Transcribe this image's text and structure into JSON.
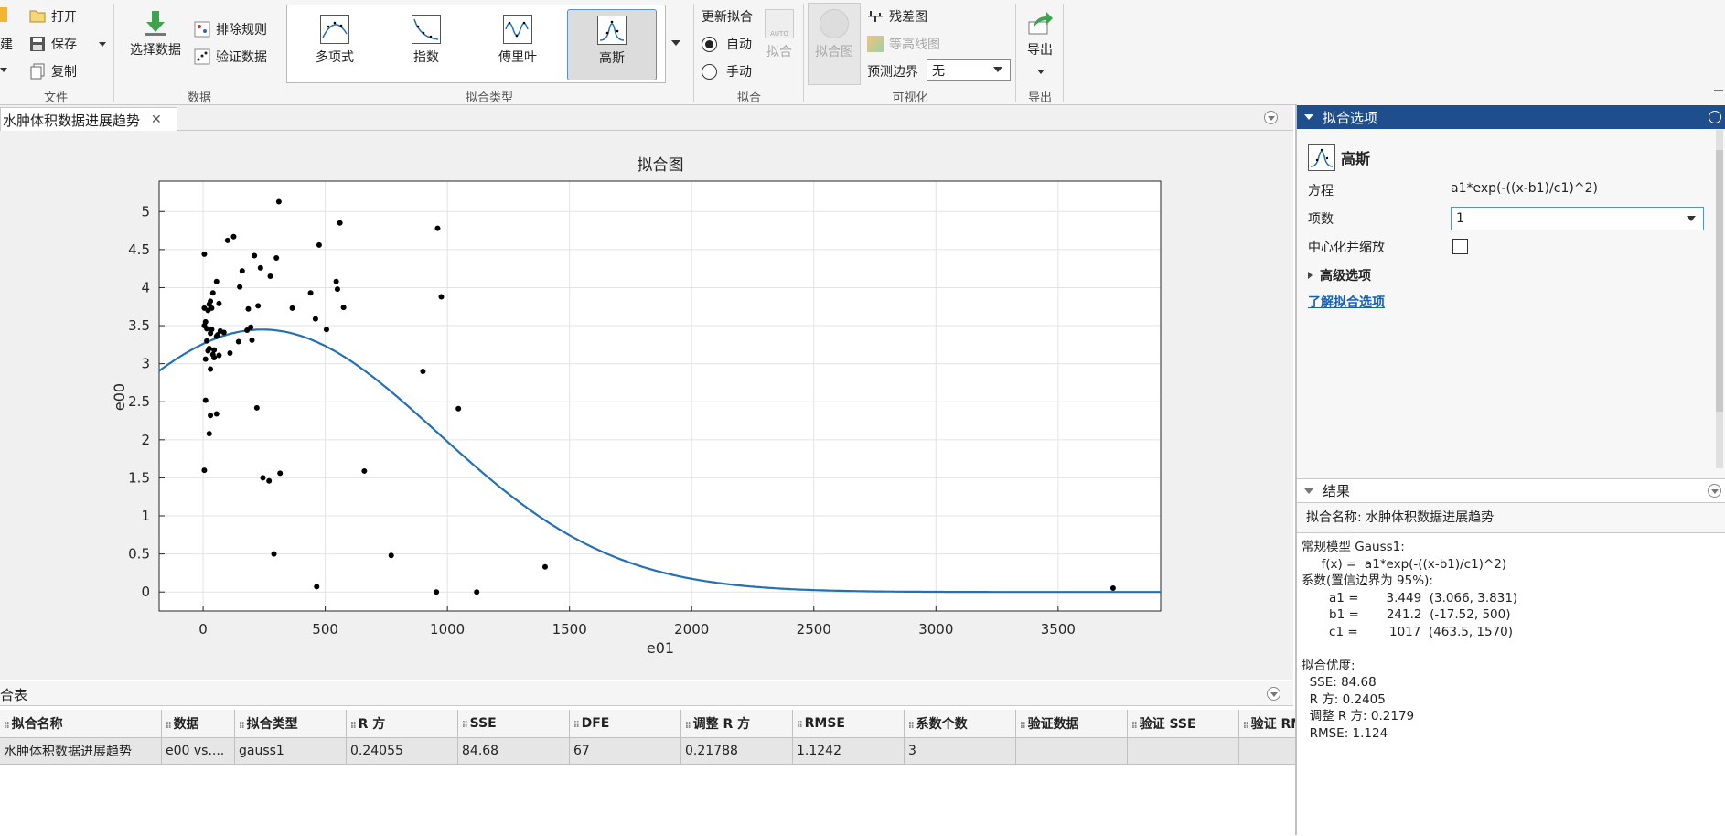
{
  "ribbon": {
    "file": {
      "new_label": "建",
      "open_label": "打开",
      "save_label": "保存",
      "copy_label": "复制",
      "group_label": "文件"
    },
    "data": {
      "select_data_label": "选择数据",
      "exclude_rules_label": "排除规则",
      "validation_data_label": "验证数据",
      "group_label": "数据"
    },
    "fit_type": {
      "items": [
        "多项式",
        "指数",
        "傅里叶",
        "高斯"
      ],
      "selected": "高斯",
      "group_label": "拟合类型"
    },
    "fit": {
      "update_label": "更新拟合",
      "auto_label": "自动",
      "manual_label": "手动",
      "fit_button_label": "拟合",
      "auto_icon_text": "AUTO",
      "group_label": "拟合"
    },
    "visualize": {
      "fit_plot_label": "拟合图",
      "residual_label": "残差图",
      "contour_label": "等高线图",
      "pred_bounds_label": "预测边界",
      "pred_bounds_value": "无",
      "group_label": "可视化"
    },
    "export": {
      "export_label": "导出",
      "group_label": "导出"
    }
  },
  "doc_tab": {
    "title": "水肿体积数据进展趋势"
  },
  "chart_data": {
    "type": "scatter",
    "title": "拟合图",
    "xlabel": "e01",
    "ylabel": "e00",
    "xlim": [
      -180,
      3920
    ],
    "ylim": [
      -0.25,
      5.4
    ],
    "xticks": [
      "0",
      "500",
      "1000",
      "1500",
      "2000",
      "2500",
      "3000",
      "3500"
    ],
    "xtick_values": [
      0,
      500,
      1000,
      1500,
      2000,
      2500,
      3000,
      3500
    ],
    "yticks": [
      "0",
      "0.5",
      "1",
      "1.5",
      "2",
      "2.5",
      "3",
      "3.5",
      "4",
      "4.5",
      "5"
    ],
    "ytick_values": [
      0,
      0.5,
      1,
      1.5,
      2,
      2.5,
      3,
      3.5,
      4,
      4.5,
      5
    ],
    "grid": true,
    "points": [
      [
        5,
        4.44
      ],
      [
        5,
        3.73
      ],
      [
        5,
        3.5
      ],
      [
        10,
        3.55
      ],
      [
        15,
        3.46
      ],
      [
        20,
        3.7
      ],
      [
        25,
        3.78
      ],
      [
        30,
        3.82
      ],
      [
        35,
        3.73
      ],
      [
        40,
        3.93
      ],
      [
        15,
        3.3
      ],
      [
        20,
        3.17
      ],
      [
        25,
        3.2
      ],
      [
        30,
        3.4
      ],
      [
        35,
        3.45
      ],
      [
        40,
        3.12
      ],
      [
        45,
        3.08
      ],
      [
        10,
        3.06
      ],
      [
        30,
        2.93
      ],
      [
        55,
        3.36
      ],
      [
        60,
        3.38
      ],
      [
        65,
        3.79
      ],
      [
        70,
        3.43
      ],
      [
        85,
        3.41
      ],
      [
        55,
        4.08
      ],
      [
        100,
        4.62
      ],
      [
        125,
        4.67
      ],
      [
        150,
        4.01
      ],
      [
        160,
        4.22
      ],
      [
        185,
        3.72
      ],
      [
        195,
        3.48
      ],
      [
        200,
        3.31
      ],
      [
        210,
        4.42
      ],
      [
        235,
        4.26
      ],
      [
        275,
        4.15
      ],
      [
        300,
        4.39
      ],
      [
        310,
        5.13
      ],
      [
        225,
        3.76
      ],
      [
        180,
        3.44
      ],
      [
        145,
        3.29
      ],
      [
        110,
        3.14
      ],
      [
        65,
        3.11
      ],
      [
        45,
        3.18
      ],
      [
        365,
        3.73
      ],
      [
        440,
        3.93
      ],
      [
        460,
        3.59
      ],
      [
        475,
        4.56
      ],
      [
        505,
        3.45
      ],
      [
        545,
        4.08
      ],
      [
        550,
        3.98
      ],
      [
        560,
        4.85
      ],
      [
        575,
        3.74
      ],
      [
        10,
        2.52
      ],
      [
        30,
        2.32
      ],
      [
        55,
        2.34
      ],
      [
        25,
        2.08
      ],
      [
        220,
        2.42
      ],
      [
        5,
        1.6
      ],
      [
        245,
        1.5
      ],
      [
        270,
        1.46
      ],
      [
        315,
        1.56
      ],
      [
        660,
        1.59
      ],
      [
        290,
        0.5
      ],
      [
        465,
        0.07
      ],
      [
        770,
        0.48
      ],
      [
        900,
        2.9
      ],
      [
        960,
        4.78
      ],
      [
        975,
        3.88
      ],
      [
        1045,
        2.41
      ],
      [
        955,
        0
      ],
      [
        1120,
        0
      ],
      [
        1400,
        0.33
      ],
      [
        3725,
        0.05
      ]
    ],
    "fit_curve": {
      "model": "gauss1",
      "a1": 3.449,
      "b1": 241.2,
      "c1": 1017
    }
  },
  "table": {
    "panel_title": "合表",
    "columns": [
      "拟合名称",
      "数据",
      "拟合类型",
      "R 方",
      "SSE",
      "DFE",
      "调整 R 方",
      "RMSE",
      "系数个数",
      "验证数据",
      "验证 SSE",
      "验证 RMSE"
    ],
    "rows": [
      [
        "水肿体积数据进展趋势",
        "e00 vs....",
        "gauss1",
        "0.24055",
        "84.68",
        "67",
        "0.21788",
        "1.1242",
        "3",
        "",
        "",
        ""
      ]
    ]
  },
  "fit_options": {
    "panel_title": "拟合选项",
    "fit_name": "高斯",
    "equation_label": "方程",
    "equation_value": "a1*exp(-((x-b1)/c1)^2)",
    "terms_label": "项数",
    "terms_value": "1",
    "center_scale_label": "中心化并缩放",
    "center_scale_checked": false,
    "advanced_label": "高级选项",
    "learn_link": "了解拟合选项"
  },
  "results": {
    "panel_title": "结果",
    "fit_name_line": "拟合名称: 水肿体积数据进展趋势",
    "lines": [
      "常规模型 Gauss1:",
      "     f(x) =  a1*exp(-((x-b1)/c1)^2)",
      "系数(置信边界为 95%):",
      "       a1 =       3.449  (3.066, 3.831)",
      "       b1 =       241.2  (-17.52, 500)",
      "       c1 =        1017  (463.5, 1570)",
      "",
      "拟合优度:",
      "  SSE: 84.68",
      "  R 方: 0.2405",
      "  调整 R 方: 0.2179",
      "  RMSE: 1.124"
    ]
  },
  "colors": {
    "accent_blue": "#1f4e8c",
    "curve": "#2370b6",
    "link": "#1a5fb4",
    "selected_border": "#5a8fd0"
  }
}
